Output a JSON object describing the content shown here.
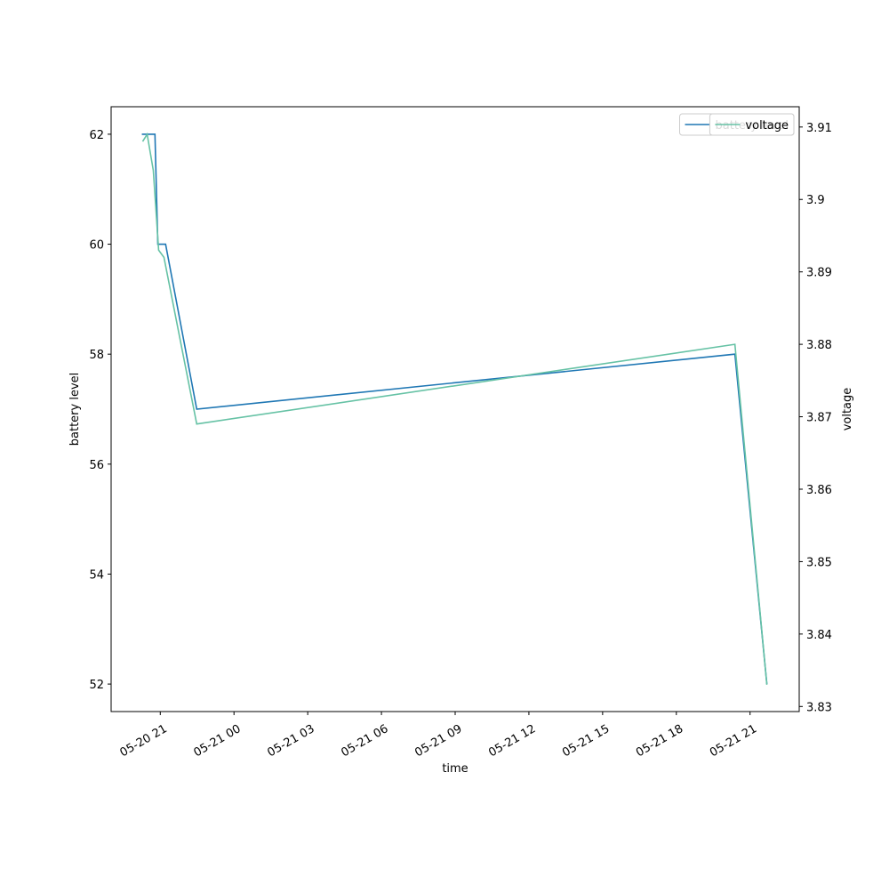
{
  "chart_data": {
    "type": "line",
    "x_label": "time",
    "y_label": "battery level",
    "y2_label": "voltage",
    "xlim": [
      "05-20 19:00",
      "05-21 23:00"
    ],
    "xticks": [
      "05-20 21",
      "05-21 00",
      "05-21 03",
      "05-21 06",
      "05-21 09",
      "05-21 12",
      "05-21 15",
      "05-21 18",
      "05-21 21"
    ],
    "ylim": [
      51.5,
      62.5
    ],
    "yticks": [
      52,
      54,
      56,
      58,
      60,
      62
    ],
    "y2lim": [
      3.8293,
      3.9128
    ],
    "y2ticks": [
      3.83,
      3.84,
      3.85,
      3.86,
      3.87,
      3.88,
      3.89,
      3.9,
      3.91
    ],
    "legend": "upper right",
    "series": [
      {
        "name": "battery level",
        "color": "#1f77b4",
        "x": [
          "05-20 20:15",
          "05-20 20:47",
          "05-20 20:54",
          "05-20 21:13",
          "05-20 22:29",
          "05-21 20:23",
          "05-21 21:41"
        ],
        "values": [
          62,
          62,
          60,
          60,
          57,
          58,
          52
        ]
      },
      {
        "name": "voltage",
        "color": "#66c2a5",
        "axis": "y2",
        "x": [
          "05-20 20:17",
          "05-20 20:28",
          "05-20 20:43",
          "05-20 20:56",
          "05-20 21:09",
          "05-20 22:29",
          "05-21 20:23",
          "05-21 21:41"
        ],
        "values": [
          3.908,
          3.909,
          3.904,
          3.893,
          3.892,
          3.869,
          3.88,
          3.833
        ]
      }
    ]
  }
}
